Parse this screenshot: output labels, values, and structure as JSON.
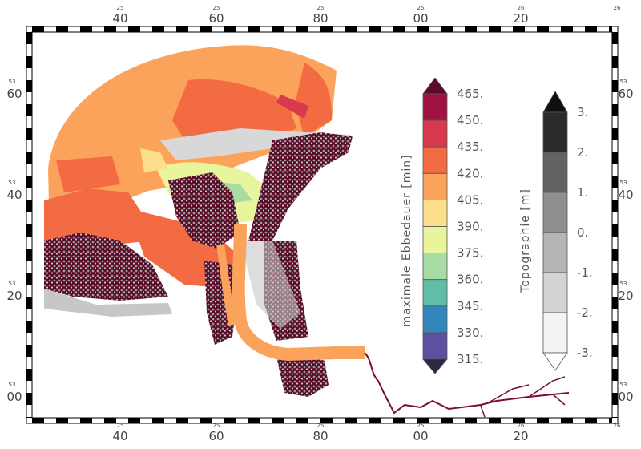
{
  "map": {
    "axis_top": {
      "small": [
        "25",
        "25",
        "25",
        "25",
        "26",
        "26"
      ],
      "large": [
        "40",
        "60",
        "80",
        "00",
        "20"
      ]
    },
    "axis_bottom": {
      "small": [
        "25",
        "25",
        "25",
        "25",
        "26",
        "26"
      ],
      "large": [
        "40",
        "60",
        "80",
        "00",
        "20"
      ]
    },
    "axis_left": {
      "small": [
        "53",
        "53",
        "53",
        "53"
      ],
      "large": [
        "60",
        "40",
        "20",
        "00"
      ]
    },
    "axis_right": {
      "small": [
        "53",
        "53",
        "53",
        "53"
      ],
      "large": [
        "60",
        "40",
        "20",
        "00"
      ]
    }
  },
  "legend_ebb": {
    "title": "maximale Ebbedauer [min]",
    "labels": [
      "465.",
      "450.",
      "435.",
      "420.",
      "405.",
      "390.",
      "375.",
      "360.",
      "345.",
      "330.",
      "315."
    ],
    "colors": [
      "#5e0a2e",
      "#a0123f",
      "#d9394e",
      "#f26b43",
      "#fba35a",
      "#fddf8b",
      "#e8f59c",
      "#a7dca2",
      "#5fbea5",
      "#3288bd",
      "#5e4fa2",
      "#2f2640"
    ]
  },
  "legend_topo": {
    "title": "Topographie [m]",
    "labels": [
      "3.",
      "2.",
      "1.",
      "0.",
      "-1.",
      "-2.",
      "-3."
    ],
    "colors": [
      "#0f0f0f",
      "#2a2a2a",
      "#636363",
      "#8f8f8f",
      "#b5b5b5",
      "#d3d3d3",
      "#f3f3f3",
      "#ffffff"
    ]
  }
}
